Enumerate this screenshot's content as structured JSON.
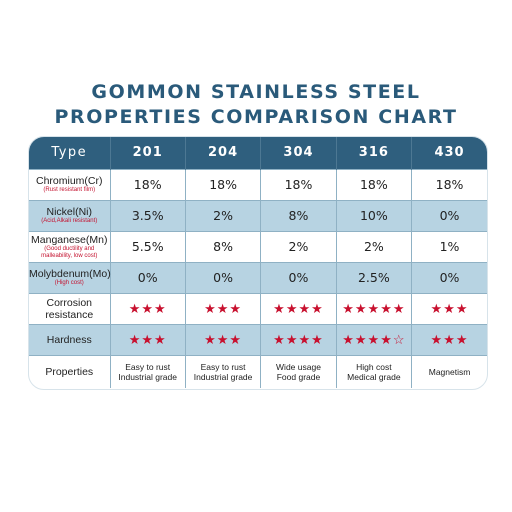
{
  "title": {
    "line1": "GOMMON STAINLESS STEEL",
    "line2": "PROPERTIES COMPARISON CHART"
  },
  "table": {
    "header": [
      "Type",
      "201",
      "204",
      "304",
      "316",
      "430"
    ],
    "rows": [
      {
        "label": "Chromium(Cr)",
        "note": "(Rust resistant film)",
        "values": [
          "18%",
          "18%",
          "18%",
          "18%",
          "18%"
        ]
      },
      {
        "label": "Nickel(Ni)",
        "note": "(Acid,Alkali resistant)",
        "values": [
          "3.5%",
          "2%",
          "8%",
          "10%",
          "0%"
        ]
      },
      {
        "label": "Manganese(Mn)",
        "note": "(Good ductility and malleability, low cost)",
        "values": [
          "5.5%",
          "8%",
          "2%",
          "2%",
          "1%"
        ]
      },
      {
        "label": "Molybdenum(Mo)",
        "note": "(High cost)",
        "values": [
          "0%",
          "0%",
          "0%",
          "2.5%",
          "0%"
        ]
      }
    ],
    "corrosion": {
      "label1": "Corrosion",
      "label2": "resistance",
      "stars": [
        3,
        3,
        4,
        5,
        3
      ],
      "max": [
        3,
        3,
        4,
        5,
        3
      ]
    },
    "hardness": {
      "label": "Hardness",
      "stars": [
        3,
        3,
        4,
        4,
        3
      ],
      "max": [
        3,
        3,
        4,
        5,
        3
      ]
    },
    "properties": {
      "label": "Properties",
      "values": [
        [
          "Easy to rust",
          "Industrial grade"
        ],
        [
          "Easy to rust",
          "Industrial grade"
        ],
        [
          "Wide usage",
          "Food grade"
        ],
        [
          "High cost",
          "Medical grade"
        ],
        [
          "Magnetism"
        ]
      ]
    }
  },
  "colors": {
    "header": "#2f5f7e",
    "alt_row": "#b7d3e2",
    "title": "#2a5a7a",
    "star": "#c8102e"
  }
}
